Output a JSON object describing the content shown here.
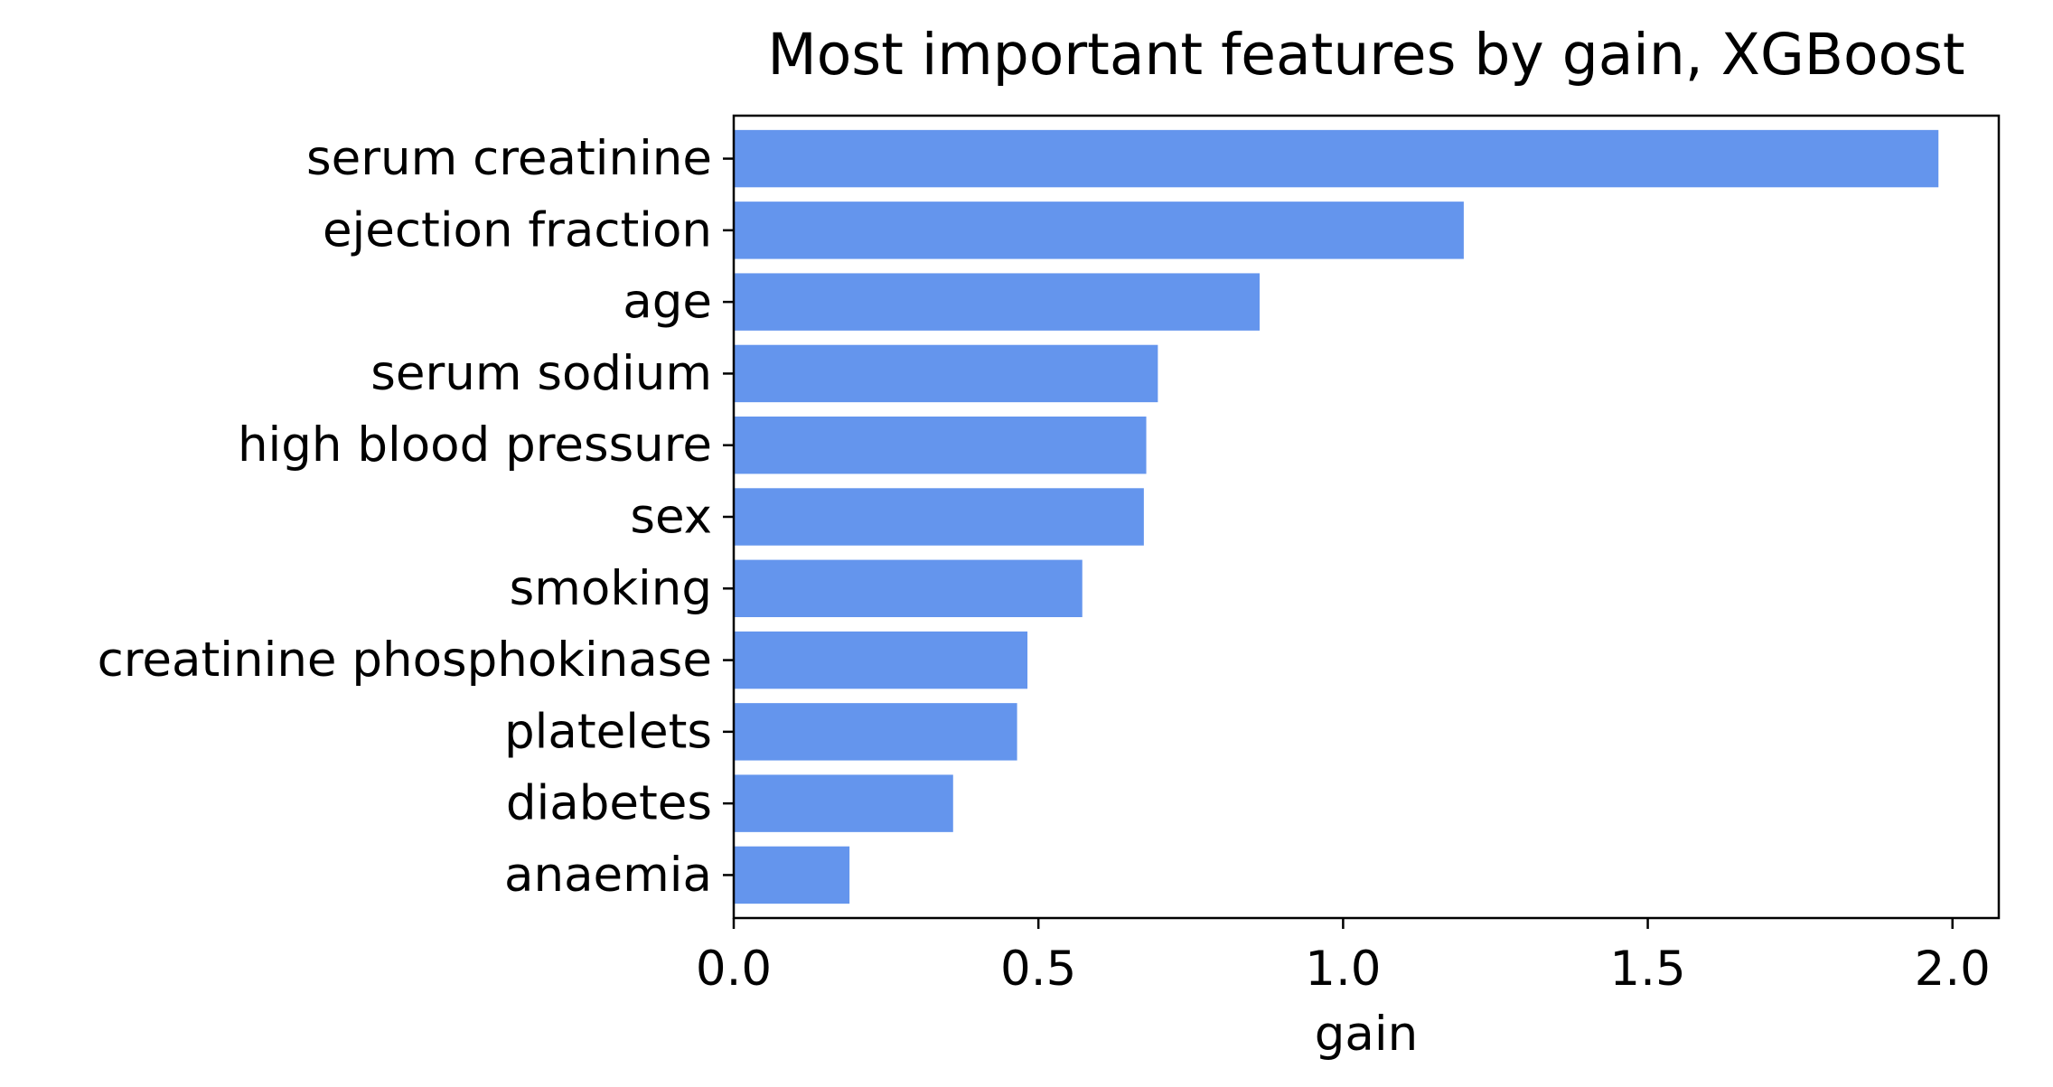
{
  "chart_data": {
    "type": "bar",
    "orientation": "horizontal",
    "title": "Most important features by gain, XGBoost",
    "xlabel": "gain",
    "ylabel": "",
    "categories": [
      "serum creatinine",
      "ejection fraction",
      "age",
      "serum sodium",
      "high blood pressure",
      "sex",
      "smoking",
      "creatinine phosphokinase",
      "platelets",
      "diabetes",
      "anaemia"
    ],
    "values": [
      1.977,
      1.198,
      0.863,
      0.696,
      0.677,
      0.673,
      0.572,
      0.482,
      0.465,
      0.36,
      0.19
    ],
    "xlim": [
      0,
      2.076
    ],
    "xticks": [
      0.0,
      0.5,
      1.0,
      1.5,
      2.0
    ],
    "xtick_labels": [
      "0.0",
      "0.5",
      "1.0",
      "1.5",
      "2.0"
    ],
    "bar_color": "#6495ED",
    "grid": false,
    "legend": "none"
  }
}
